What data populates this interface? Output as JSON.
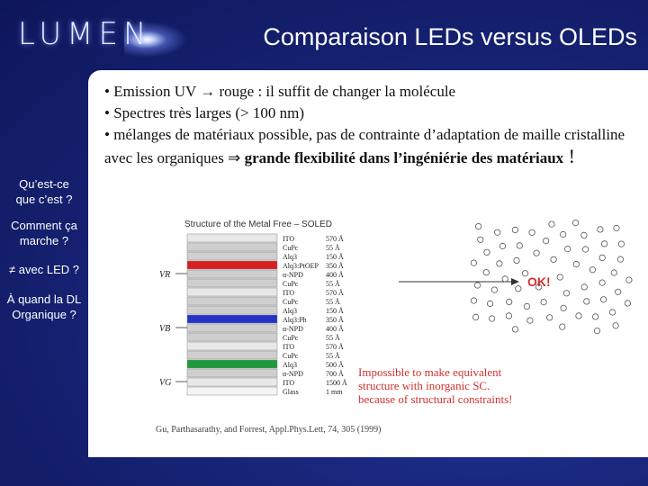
{
  "header": {
    "logo_text": "LUMEN",
    "title": "Comparaison LEDs versus OLEDs"
  },
  "nav": {
    "items": [
      {
        "line1": "Qu’est-ce",
        "line2": "que c’est ?"
      },
      {
        "line1": "Comment ça",
        "line2": "marche ?"
      },
      {
        "line1": "≠ avec LED ?",
        "line2": ""
      },
      {
        "line1": "À quand la DL",
        "line2": "Organique ?"
      }
    ]
  },
  "bullets": {
    "b1": "• Emission UV → rouge : il suffit de changer la molécule",
    "b2": "• Spectres très larges (> 100 nm)",
    "b3_plain": "• mélanges de matériaux possible, pas de contrainte d’adaptation de maille cristalline avec les organiques ⇒ ",
    "b3_bold": "grande flexibilité dans l’ingéniérie des matériaux",
    "b3_end": " !"
  },
  "figure": {
    "title": "Structure of the Metal Free – SOLED",
    "layers": [
      {
        "name": "ITO",
        "thickness": "570 Å"
      },
      {
        "name": "CuPc",
        "thickness": "55 Å"
      },
      {
        "name": "Alq3",
        "thickness": "150 Å"
      },
      {
        "name": "Alq3:PtOEP",
        "thickness": "350 Å"
      },
      {
        "name": "α-NPD",
        "thickness": "400 Å"
      },
      {
        "name": "CuPc",
        "thickness": "55 Å"
      },
      {
        "name": "ITO",
        "thickness": "570 Å"
      },
      {
        "name": "CuPc",
        "thickness": "55 Å"
      },
      {
        "name": "Alq3",
        "thickness": "150 Å"
      },
      {
        "name": "Alq3:Ph",
        "thickness": "350 Å"
      },
      {
        "name": "α-NPD",
        "thickness": "400 Å"
      },
      {
        "name": "CuPc",
        "thickness": "55 Å"
      },
      {
        "name": "ITO",
        "thickness": "570 Å"
      },
      {
        "name": "CuPc",
        "thickness": "55 Å"
      },
      {
        "name": "Alq3",
        "thickness": "500 Å"
      },
      {
        "name": "α-NPD",
        "thickness": "700 Å"
      },
      {
        "name": "ITO",
        "thickness": "1500 Å"
      },
      {
        "name": "Glass",
        "thickness": "1 mm"
      }
    ],
    "voltages": [
      "VR",
      "VB",
      "VG"
    ],
    "ok_label": "OK!",
    "note_line1": "Impossible to make equivalent",
    "note_line2": "structure with inorganic SC.",
    "note_line3": "because of structural constraints!",
    "caption": "Gu, Parthasarathy, and Forrest, Appl.Phys.Lett, 74, 305 (1999)"
  },
  "colors": {
    "red_layer": "#d82020",
    "blue_layer": "#2533c8",
    "green_layer": "#1f9a3a",
    "note_red": "#d03030"
  }
}
